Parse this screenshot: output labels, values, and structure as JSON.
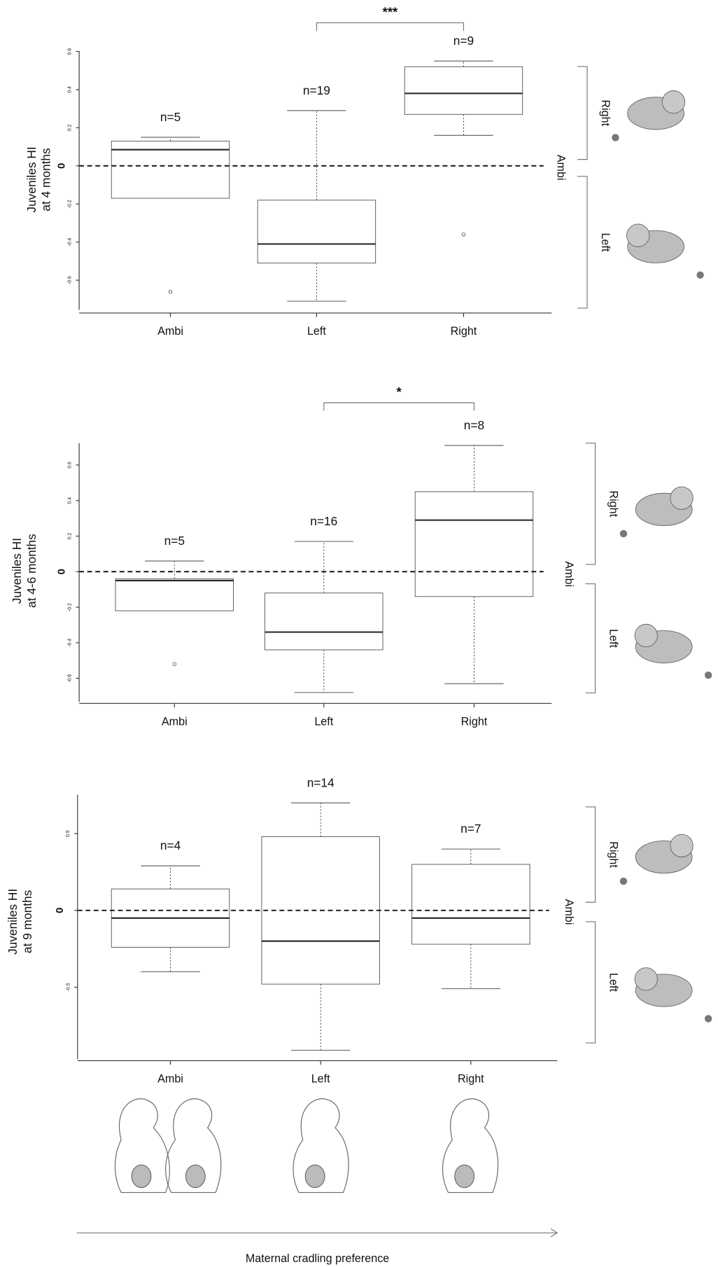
{
  "chart_data": [
    {
      "type": "box",
      "y_label": [
        "Juveniles HI",
        "at 4 months"
      ],
      "categories": [
        "Ambi",
        "Left",
        "Right"
      ],
      "n_labels": [
        "n=5",
        "n=19",
        "n=9"
      ],
      "boxes": [
        {
          "min": -0.17,
          "q1": -0.17,
          "median": 0.085,
          "q3": 0.13,
          "max": 0.15,
          "outliers": [
            -0.66
          ]
        },
        {
          "min": -0.71,
          "q1": -0.51,
          "median": -0.41,
          "q3": -0.18,
          "max": 0.29,
          "outliers": []
        },
        {
          "min": 0.16,
          "q1": 0.27,
          "median": 0.38,
          "q3": 0.52,
          "max": 0.55,
          "outliers": [
            -0.36
          ]
        }
      ],
      "ylim": [
        -0.755,
        0.602
      ],
      "yticks": [
        0.6,
        0.4,
        0.2,
        0,
        -0.2,
        -0.4,
        -0.6
      ],
      "hline": 0,
      "significance": "***",
      "side_labels": [
        "Right",
        "Ambi",
        "Left"
      ]
    },
    {
      "type": "box",
      "y_label": [
        "Juveniles HI",
        "at 4-6 months"
      ],
      "categories": [
        "Ambi",
        "Left",
        "Right"
      ],
      "n_labels": [
        "n=5",
        "n=16",
        "n=8"
      ],
      "boxes": [
        {
          "min": -0.22,
          "q1": -0.22,
          "median": -0.05,
          "q3": -0.04,
          "max": 0.06,
          "outliers": [
            -0.52
          ]
        },
        {
          "min": -0.68,
          "q1": -0.44,
          "median": -0.34,
          "q3": -0.12,
          "max": 0.17,
          "outliers": []
        },
        {
          "min": -0.63,
          "q1": -0.14,
          "median": 0.29,
          "q3": 0.45,
          "max": 0.71,
          "outliers": []
        }
      ],
      "ylim": [
        -0.732,
        0.723
      ],
      "yticks": [
        0.6,
        0.4,
        0.2,
        0,
        -0.2,
        -0.4,
        -0.6
      ],
      "hline": 0,
      "significance": "*",
      "side_labels": [
        "Right",
        "Ambi",
        "Left"
      ]
    },
    {
      "type": "box",
      "y_label": [
        "Juveniles HI",
        "at 9 months"
      ],
      "categories": [
        "Ambi",
        "Left",
        "Right"
      ],
      "n_labels": [
        "n=4",
        "n=14",
        "n=7"
      ],
      "boxes": [
        {
          "min": -0.4,
          "q1": -0.24,
          "median": -0.05,
          "q3": 0.14,
          "max": 0.29,
          "outliers": []
        },
        {
          "min": -0.91,
          "q1": -0.48,
          "median": -0.2,
          "q3": 0.48,
          "max": 0.7,
          "outliers": []
        },
        {
          "min": -0.51,
          "q1": -0.22,
          "median": -0.05,
          "q3": 0.3,
          "max": 0.4,
          "outliers": []
        }
      ],
      "ylim": [
        -0.968,
        0.753
      ],
      "yticks": [
        0.5,
        0,
        -0.5
      ],
      "hline": 0,
      "side_labels": [
        "Right",
        "Ambi",
        "Left"
      ]
    }
  ],
  "x_label": "Maternal cradling preference"
}
